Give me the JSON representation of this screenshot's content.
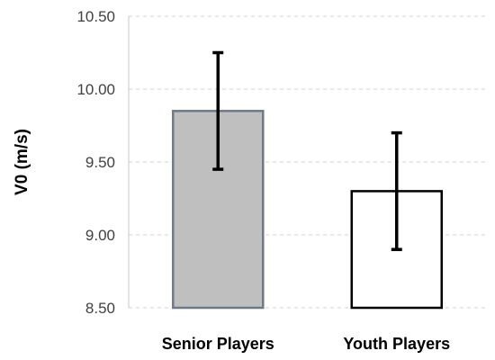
{
  "chart_data": {
    "type": "bar",
    "categories": [
      "Senior Players",
      "Youth Players"
    ],
    "values": [
      9.85,
      9.3
    ],
    "errors": [
      0.4,
      0.4
    ],
    "ylabel": "V0 (m/s)",
    "ylim": [
      8.5,
      10.5
    ],
    "yticks": [
      "8.50",
      "9.00",
      "9.50",
      "10.00",
      "10.50"
    ],
    "grid": true,
    "colors": {
      "bar_fills": [
        "#bfbfbf",
        "#ffffff"
      ],
      "bar_strokes": [
        "#6f7a86",
        "#000000"
      ],
      "error_bar": "#000000"
    }
  }
}
